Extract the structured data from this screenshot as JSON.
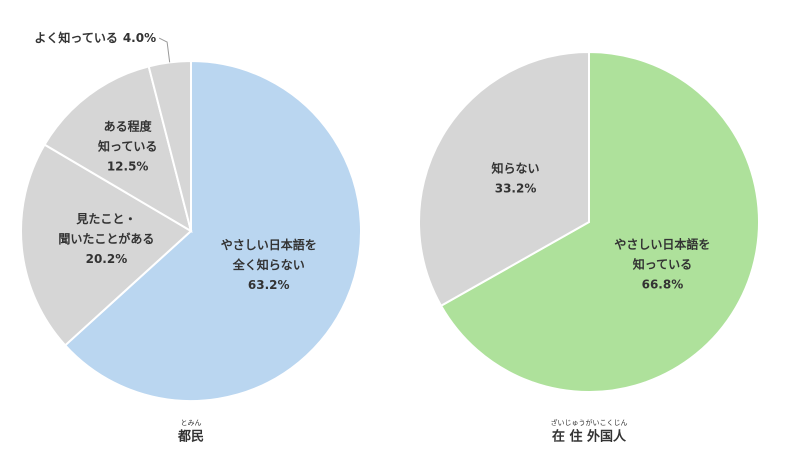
{
  "chart_data": [
    {
      "type": "pie",
      "title": "都民",
      "title_reading": "とみん",
      "categories": [
        [
          "やさしい日本語を",
          "全く知らない"
        ],
        [
          "見たこと・",
          "聞いたことがある"
        ],
        [
          "ある程度",
          "知っている"
        ],
        [
          "よく知っている"
        ]
      ],
      "values": [
        63.2,
        20.2,
        12.5,
        4.0
      ],
      "value_labels": [
        "63.2%",
        "20.2%",
        "12.5%",
        "4.0%"
      ],
      "colors": [
        "#bad6f0",
        "#d6d6d6",
        "#d6d6d6",
        "#d6d6d6"
      ]
    },
    {
      "type": "pie",
      "title": "在 住 外国人",
      "title_reading": "ざいじゅうがいこくじん",
      "categories": [
        [
          "やさしい日本語を",
          "知っている"
        ],
        [
          "知らない"
        ]
      ],
      "values": [
        66.8,
        33.2
      ],
      "value_labels": [
        "66.8%",
        "33.2%"
      ],
      "colors": [
        "#aee19b",
        "#d6d6d6"
      ]
    }
  ]
}
